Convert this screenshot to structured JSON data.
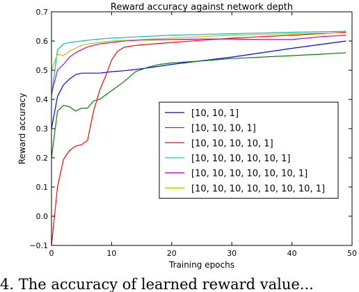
{
  "caption_fragment": "4. The accuracy of learned reward value...",
  "chart_data": {
    "type": "line",
    "title": "Reward accuracy against network depth",
    "xlabel": "Training epochs",
    "ylabel": "Reward accuracy",
    "xlim": [
      0,
      50
    ],
    "ylim": [
      -0.1,
      0.7
    ],
    "xticks": [
      0,
      10,
      20,
      30,
      40,
      50
    ],
    "yticks": [
      -0.1,
      0.0,
      0.1,
      0.2,
      0.3,
      0.4,
      0.5,
      0.6,
      0.7
    ],
    "xtick_labels": [
      "0",
      "10",
      "20",
      "30",
      "40",
      "50"
    ],
    "ytick_labels": [
      "−0.1",
      "0.0",
      "0.1",
      "0.2",
      "0.3",
      "0.4",
      "0.5",
      "0.6",
      "0.7"
    ],
    "grid": false,
    "legend": "center-right",
    "series": [
      {
        "name": "[10, 10, 1]",
        "color": "#0000ff",
        "x": [
          0,
          1,
          2,
          3,
          4,
          5,
          6,
          7,
          8,
          10,
          12,
          15,
          20,
          30,
          40,
          49
        ],
        "y": [
          0.3,
          0.41,
          0.45,
          0.47,
          0.485,
          0.49,
          0.49,
          0.49,
          0.49,
          0.495,
          0.498,
          0.505,
          0.52,
          0.545,
          0.575,
          0.6
        ]
      },
      {
        "name": "[10, 10, 10, 1]",
        "color": "#008000",
        "x": [
          0,
          1,
          2,
          3,
          4,
          5,
          6,
          7,
          8,
          10,
          12,
          14,
          16,
          18,
          20,
          25,
          30,
          35,
          40,
          45,
          49
        ],
        "y": [
          0.2,
          0.36,
          0.38,
          0.375,
          0.36,
          0.37,
          0.37,
          0.395,
          0.4,
          0.43,
          0.46,
          0.495,
          0.51,
          0.52,
          0.525,
          0.532,
          0.54,
          0.545,
          0.55,
          0.555,
          0.56
        ]
      },
      {
        "name": "[10, 10, 10, 10, 1]",
        "color": "#ff0000",
        "x": [
          0,
          1,
          2,
          3,
          4,
          5,
          6,
          7,
          8,
          9,
          10,
          11,
          12,
          13,
          14,
          15,
          20,
          30,
          40,
          49
        ],
        "y": [
          -0.1,
          0.1,
          0.195,
          0.225,
          0.24,
          0.245,
          0.26,
          0.36,
          0.43,
          0.48,
          0.535,
          0.565,
          0.578,
          0.582,
          0.585,
          0.587,
          0.595,
          0.61,
          0.62,
          0.63
        ]
      },
      {
        "name": "[10, 10, 10, 10, 10, 1]",
        "color": "#00bfbf",
        "x": [
          0,
          1,
          2,
          3,
          4,
          5,
          7,
          10,
          15,
          20,
          30,
          40,
          49
        ],
        "y": [
          0.41,
          0.57,
          0.59,
          0.595,
          0.598,
          0.6,
          0.605,
          0.61,
          0.615,
          0.62,
          0.625,
          0.63,
          0.633
        ]
      },
      {
        "name": "[10, 10, 10, 10, 10, 10, 1]",
        "color": "#bf00bf",
        "x": [
          0,
          1,
          2,
          3,
          4,
          5,
          6,
          7,
          8,
          10,
          12,
          15,
          20,
          25,
          30,
          35,
          40,
          45,
          49
        ],
        "y": [
          0.42,
          0.5,
          0.52,
          0.545,
          0.56,
          0.57,
          0.58,
          0.585,
          0.59,
          0.595,
          0.6,
          0.603,
          0.605,
          0.607,
          0.607,
          0.605,
          0.605,
          0.615,
          0.62
        ]
      },
      {
        "name": "[10, 10, 10, 10, 10, 10, 10, 1]",
        "color": "#bfbf00",
        "x": [
          0,
          1,
          2,
          3,
          4,
          5,
          6,
          8,
          10,
          15,
          20,
          30,
          40,
          49
        ],
        "y": [
          0.5,
          0.555,
          0.55,
          0.565,
          0.575,
          0.585,
          0.59,
          0.595,
          0.6,
          0.605,
          0.61,
          0.62,
          0.625,
          0.628
        ]
      }
    ]
  }
}
